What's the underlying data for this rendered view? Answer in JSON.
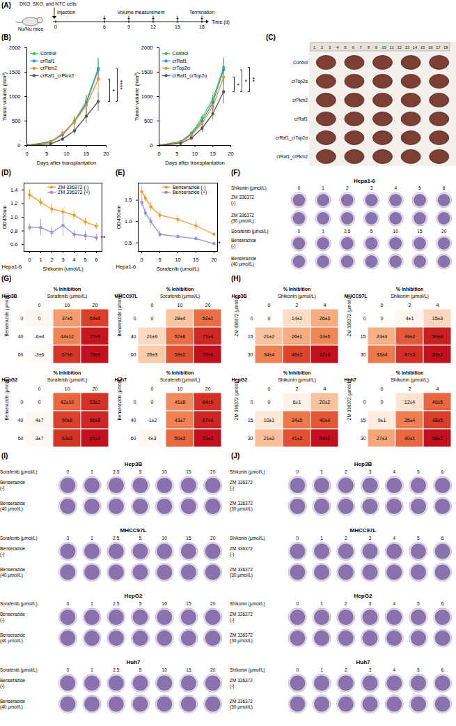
{
  "figure": {
    "A": {
      "panel": "(A)",
      "cells": "DKO, SKO, and NTC cells",
      "event": "Injection",
      "host": "Nu/Nu mice",
      "measurement": "Volume measurement",
      "end": "Termination",
      "axis_label": "Time (d)",
      "ticks": [
        0,
        6,
        9,
        12,
        15,
        18
      ]
    },
    "C": {
      "panel": "(C)",
      "ruler": [
        1,
        2,
        3,
        4,
        5,
        6,
        7,
        8,
        9,
        10,
        11,
        12,
        13,
        14,
        15,
        16,
        17,
        18
      ],
      "rows": [
        "Control",
        "crTop2α",
        "crPkm2",
        "crRaf1",
        "crRaf1_crTop2α",
        "crRaf1_crPkm2"
      ],
      "tumors_per_row": 5
    },
    "F": {
      "panel": "(F)",
      "title": "Hepa1-6",
      "blocks": [
        {
          "dose_label": "Shikonin (μmol/L)",
          "doses": [
            0,
            1,
            2,
            3,
            4,
            5,
            6
          ],
          "rows": [
            "ZM 336372 (-)",
            "ZM 336372 (30 μmol/L)"
          ]
        },
        {
          "dose_label": "Sorafenib (μmol/L)",
          "doses": [
            0,
            1,
            2.5,
            5,
            10,
            15,
            20
          ],
          "rows": [
            "Benserazide (-)",
            "Benserazide (40 μmol/L)"
          ]
        }
      ]
    },
    "I": {
      "panel": "(I)",
      "cell_lines": [
        "Hep3B",
        "MHCC97L",
        "HepG2",
        "Huh7"
      ],
      "dose_label": "Sorafenib (μmol/L)",
      "doses": [
        0,
        1,
        2.5,
        5,
        10,
        15,
        20
      ],
      "rows": [
        "Benserazide (-)",
        "Benserazide (40 μmol/L)"
      ]
    },
    "J": {
      "panel": "(J)",
      "cell_lines": [
        "Hep3B",
        "MHCC97L",
        "HepG2",
        "Huh7"
      ],
      "dose_label": "Shikonin (μmol/L)",
      "doses": [
        0,
        1,
        2,
        3,
        4,
        5,
        6
      ],
      "rows": [
        "ZM 336372 (-)",
        "ZM 336372 (30 μmol/L)"
      ]
    }
  },
  "chart_data": [
    {
      "type": "line",
      "panel": "(B)",
      "x_label": "Days after transplantation",
      "y_label": "Tumor volume (mm³)",
      "x": [
        0,
        6,
        9,
        12,
        15,
        18
      ],
      "xlim": [
        0,
        20
      ],
      "xticks": [
        0,
        5,
        10,
        15,
        20
      ],
      "ylim": [
        0,
        2000
      ],
      "yticks": [
        0,
        500,
        1000,
        1500,
        2000
      ],
      "legend": "top-left",
      "marker": "circle",
      "series": [
        {
          "name": "Control",
          "color": "#3cc83c",
          "values": [
            0,
            80,
            230,
            500,
            900,
            1580
          ],
          "errors": [
            0,
            15,
            40,
            80,
            120,
            200
          ]
        },
        {
          "name": "crRaf1",
          "color": "#2f8fe0",
          "values": [
            0,
            70,
            220,
            480,
            870,
            1550
          ],
          "errors": [
            0,
            15,
            40,
            90,
            150,
            230
          ]
        },
        {
          "name": "crPkm2",
          "color": "#f28c28",
          "values": [
            0,
            60,
            250,
            480,
            820,
            1360
          ],
          "errors": [
            0,
            20,
            80,
            120,
            200,
            250
          ]
        },
        {
          "name": "crRaf1_crPkm2",
          "color": "#555555",
          "values": [
            0,
            30,
            130,
            300,
            600,
            900
          ],
          "errors": [
            0,
            10,
            50,
            80,
            150,
            200
          ]
        }
      ],
      "annotations": [
        {
          "text": "*",
          "between": [
            "crPkm2",
            "crRaf1_crPkm2"
          ]
        },
        {
          "text": "****",
          "between": [
            "Control",
            "crRaf1_crPkm2"
          ]
        }
      ]
    },
    {
      "type": "line",
      "x_label": "Days after transplantation",
      "y_label": "Tumor volume (mm³)",
      "x": [
        0,
        6,
        9,
        12,
        15,
        18
      ],
      "xlim": [
        0,
        20
      ],
      "xticks": [
        0,
        5,
        10,
        15,
        20
      ],
      "ylim": [
        0,
        2000
      ],
      "yticks": [
        0,
        500,
        1000,
        1500,
        2000
      ],
      "legend": "top-left",
      "marker": "circle",
      "series": [
        {
          "name": "Control",
          "color": "#3cc83c",
          "values": [
            0,
            80,
            250,
            560,
            950,
            1600
          ],
          "errors": [
            0,
            15,
            40,
            80,
            130,
            200
          ]
        },
        {
          "name": "crRaf1",
          "color": "#2f8fe0",
          "values": [
            0,
            70,
            230,
            500,
            880,
            1550
          ],
          "errors": [
            0,
            15,
            40,
            90,
            140,
            220
          ]
        },
        {
          "name": "crTop2α",
          "color": "#f28c28",
          "values": [
            0,
            60,
            210,
            450,
            800,
            1400
          ],
          "errors": [
            0,
            15,
            40,
            80,
            120,
            180
          ]
        },
        {
          "name": "crRaf1_crTop2α",
          "color": "#555555",
          "values": [
            0,
            40,
            150,
            350,
            650,
            1100
          ],
          "errors": [
            0,
            10,
            40,
            80,
            120,
            250
          ]
        }
      ],
      "annotations": [
        {
          "text": "*",
          "between": [
            "crTop2α",
            "crRaf1_crTop2α"
          ]
        },
        {
          "text": "*",
          "between": [
            "crRaf1",
            "crRaf1_crTop2α"
          ]
        },
        {
          "text": "**",
          "between": [
            "Control",
            "crRaf1_crTop2α"
          ]
        }
      ]
    },
    {
      "type": "line",
      "panel": "(D)",
      "cell_line": "Hepa1-6",
      "x_label": "Shikonin (umol/L)",
      "y_label": "OD450nm",
      "x": [
        0,
        1,
        2,
        3,
        4,
        5,
        6
      ],
      "xlim": [
        -0.5,
        6.5
      ],
      "xticks": [
        0,
        1,
        2,
        3,
        4,
        5,
        6
      ],
      "ylim": [
        0.5,
        1.5
      ],
      "yticks": [
        0.6,
        0.8,
        {
          "value": 1,
          "label": "1.0"
        },
        1.2,
        1.4
      ],
      "legend": "top-right",
      "series": [
        {
          "name": "ZM 336372 (-)",
          "color": "#f39a2f",
          "marker": "circle",
          "values": [
            1.33,
            1.22,
            1.12,
            1.08,
            1.03,
            0.93,
            0.87
          ],
          "errors": [
            0.08,
            0.06,
            0.07,
            0.06,
            0.06,
            0.06,
            0.05
          ]
        },
        {
          "name": "ZM 336372 (+)",
          "color": "#8f8de8",
          "marker": "square",
          "values": [
            0.85,
            0.85,
            0.78,
            0.88,
            0.75,
            0.73,
            0.7
          ],
          "errors": [
            0.05,
            0.12,
            0.08,
            0.15,
            0.06,
            0.07,
            0.05
          ]
        }
      ],
      "annotations": [
        {
          "text": "**",
          "series": "ZM 336372 (+)"
        }
      ]
    },
    {
      "type": "line",
      "panel": "(E)",
      "cell_line": "Hepa1-6",
      "x_label": "Sorafenib (umol/L)",
      "y_label": "OD450nm",
      "x": [
        0,
        1,
        2.5,
        5,
        10,
        15,
        20
      ],
      "xlim": [
        -1,
        21
      ],
      "xticks": [
        0,
        5,
        10,
        15,
        20
      ],
      "ylim": [
        0.3,
        1.9
      ],
      "yticks": [
        0.5,
        {
          "value": 1,
          "label": "1.0"
        },
        1.5
      ],
      "legend": "top-right",
      "series": [
        {
          "name": "Benserazide (-)",
          "color": "#f39a2f",
          "marker": "circle",
          "values": [
            1.7,
            1.55,
            1.35,
            1.15,
            1.05,
            0.9,
            0.7
          ],
          "errors": [
            0.12,
            0.1,
            0.1,
            0.1,
            0.1,
            0.1,
            0.05
          ]
        },
        {
          "name": "Benserazide (+)",
          "color": "#8f8de8",
          "marker": "square",
          "values": [
            1.45,
            1.2,
            1.0,
            0.7,
            0.65,
            0.6,
            0.48
          ],
          "errors": [
            0.1,
            0.1,
            0.1,
            0.08,
            0.05,
            0.05,
            0.04
          ]
        }
      ],
      "annotations": [
        {
          "text": "*",
          "series": "Benserazide (+)"
        }
      ]
    },
    {
      "type": "heatmap",
      "panel": "(G)",
      "title": "% Inhibition",
      "cell_line": "Hep3B",
      "x_label": "Sorafenib (μmol/L)",
      "y_label": "Benserazide (μmol/L)",
      "data_labels": true,
      "x": [
        0,
        10,
        20
      ],
      "y": [
        0,
        40,
        60
      ],
      "values": [
        [
          0,
          37,
          64
        ],
        [
          -6,
          44,
          77
        ],
        [
          -3,
          67,
          79
        ]
      ],
      "value_labels": [
        [
          "0",
          "37±5",
          "64±6"
        ],
        [
          "-6±4",
          "44±12",
          "77±9"
        ],
        [
          "-3±6",
          "67±6",
          "79±9"
        ]
      ]
    },
    {
      "type": "heatmap",
      "title": "% Inhibition",
      "cell_line": "MHCC97L",
      "x_label": "Sorafenib (μmol/L)",
      "y_label": "Benserazide (μmol/L)",
      "data_labels": true,
      "x": [
        0,
        10,
        20
      ],
      "y": [
        0,
        40,
        60
      ],
      "values": [
        [
          0,
          28,
          52
        ],
        [
          21,
          52,
          71
        ],
        [
          26,
          59,
          78
        ]
      ],
      "value_labels": [
        [
          "0",
          "28±4",
          "52±1"
        ],
        [
          "21±9",
          "52±8",
          "71±4"
        ],
        [
          "26±3",
          "59±2",
          "78±6"
        ]
      ]
    },
    {
      "type": "heatmap",
      "title": "% Inhibition",
      "cell_line": "HepG2",
      "x_label": "Sorafenib (μmol/L)",
      "y_label": "Benserazide (μmol/L)",
      "data_labels": true,
      "x": [
        0,
        10,
        20
      ],
      "y": [
        0,
        40,
        60
      ],
      "values": [
        [
          0,
          42,
          53
        ],
        [
          4,
          50,
          56
        ],
        [
          3,
          53,
          61
        ]
      ],
      "value_labels": [
        [
          "0",
          "42±10",
          "53±2"
        ],
        [
          "4±7",
          "50±6",
          "56±5"
        ],
        [
          "3±7",
          "53±3",
          "61±7"
        ]
      ]
    },
    {
      "type": "heatmap",
      "title": "% Inhibition",
      "cell_line": "Huh7",
      "x_label": "Sorafenib (μmol/L)",
      "y_label": "Benserazide (μmol/L)",
      "data_labels": true,
      "x": [
        0,
        10,
        20
      ],
      "y": [
        0,
        40,
        60
      ],
      "values": [
        [
          0,
          41,
          64
        ],
        [
          -1,
          43,
          67
        ],
        [
          4,
          50,
          73
        ]
      ],
      "value_labels": [
        [
          "0",
          "41±8",
          "64±9"
        ],
        [
          "-1±2",
          "43±7",
          "67±4"
        ],
        [
          "4±3",
          "50±3",
          "73±3"
        ]
      ]
    },
    {
      "type": "heatmap",
      "panel": "(H)",
      "title": "% Inhibition",
      "cell_line": "Hep3B",
      "x_label": "Shikonin (μmol/L)",
      "y_label": "ZM 336372 (μmol/L)",
      "data_labels": true,
      "x": [
        0,
        2,
        4
      ],
      "y": [
        0,
        15,
        30
      ],
      "values": [
        [
          0,
          14,
          26
        ],
        [
          21,
          26,
          33
        ],
        [
          34,
          46,
          57
        ]
      ],
      "value_labels": [
        [
          "0",
          "14±2",
          "26±3"
        ],
        [
          "21±2",
          "26±1",
          "33±5"
        ],
        [
          "34±4",
          "46±2",
          "57±4"
        ]
      ]
    },
    {
      "type": "heatmap",
      "title": "% Inhibition",
      "cell_line": "MHCC97L",
      "x_label": "Shikonin (μmol/L)",
      "y_label": "ZM 336372 (μmol/L)",
      "data_labels": true,
      "x": [
        0,
        2,
        4
      ],
      "y": [
        0,
        15,
        30
      ],
      "values": [
        [
          0,
          4,
          15
        ],
        [
          23,
          39,
          50
        ],
        [
          33,
          47,
          53
        ]
      ],
      "value_labels": [
        [
          "0",
          "4±1",
          "15±3"
        ],
        [
          "23±3",
          "39±2",
          "50±4"
        ],
        [
          "33±4",
          "47±3",
          "53±2"
        ]
      ]
    },
    {
      "type": "heatmap",
      "title": "% Inhibition",
      "cell_line": "HepG2",
      "x_label": "Shikonin (μmol/L)",
      "y_label": "ZM 336372 (μmol/L)",
      "data_labels": true,
      "x": [
        0,
        2,
        4
      ],
      "y": [
        0,
        15,
        30
      ],
      "values": [
        [
          0,
          6,
          20
        ],
        [
          10,
          34,
          40
        ],
        [
          21,
          41,
          54
        ]
      ],
      "value_labels": [
        [
          "0",
          "6±1",
          "20±2"
        ],
        [
          "10±1",
          "34±5",
          "40±4"
        ],
        [
          "21±2",
          "41±3",
          "54±2"
        ]
      ]
    },
    {
      "type": "heatmap",
      "title": "% Inhibition",
      "cell_line": "Huh7",
      "x_label": "Shikonin (μmol/L)",
      "y_label": "ZM 336372 (μmol/L)",
      "data_labels": true,
      "x": [
        0,
        2,
        4
      ],
      "y": [
        0,
        15,
        30
      ],
      "values": [
        [
          0,
          12,
          40
        ],
        [
          9,
          35,
          48
        ],
        [
          27,
          40,
          58
        ]
      ],
      "value_labels": [
        [
          "0",
          "12±4",
          "40±5"
        ],
        [
          "9±1",
          "35±4",
          "48±5"
        ],
        [
          "27±3",
          "40±1",
          "58±2"
        ]
      ]
    }
  ]
}
